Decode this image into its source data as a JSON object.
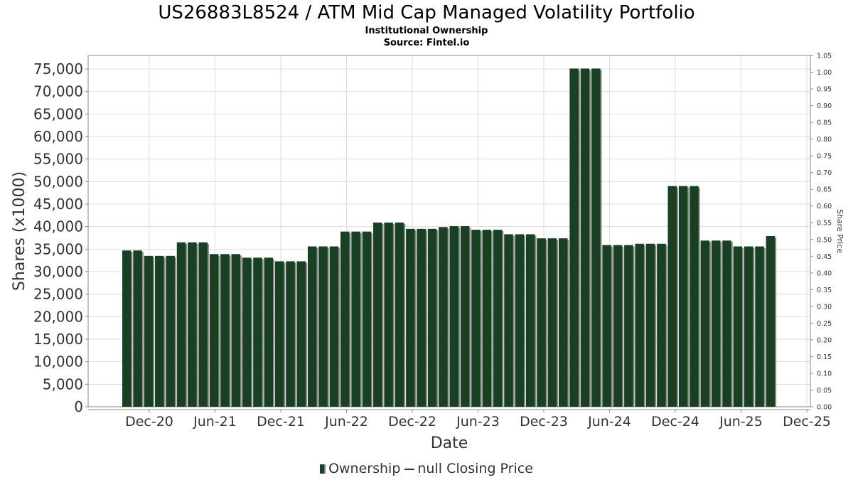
{
  "chart_data": {
    "type": "bar",
    "title": "US26883L8524 / ATM Mid Cap Managed Volatility Portfolio",
    "subtitle": "Institutional Ownership",
    "source": "Source: Fintel.io",
    "xlabel": "Date",
    "ylabel": "Shares (x1000)",
    "y2label": "Share Price",
    "ylim": [
      0,
      78000
    ],
    "y2lim": [
      0,
      1.05
    ],
    "yticks": [
      "0",
      "5,000",
      "10,000",
      "15,000",
      "20,000",
      "25,000",
      "30,000",
      "35,000",
      "40,000",
      "45,000",
      "50,000",
      "55,000",
      "60,000",
      "65,000",
      "70,000",
      "75,000"
    ],
    "y2ticks": [
      "0.00",
      "0.05",
      "0.10",
      "0.15",
      "0.20",
      "0.25",
      "0.30",
      "0.35",
      "0.40",
      "0.45",
      "0.50",
      "0.55",
      "0.60",
      "0.65",
      "0.70",
      "0.75",
      "0.80",
      "0.85",
      "0.90",
      "0.95",
      "1.00",
      "1.05"
    ],
    "xticks": [
      "Dec-20",
      "Jun-21",
      "Dec-21",
      "Jun-22",
      "Dec-22",
      "Jun-23",
      "Dec-23",
      "Jun-24",
      "Dec-24",
      "Jun-25",
      "Dec-25"
    ],
    "grid": true,
    "legend_position": "bottom",
    "series": [
      {
        "name": "Ownership",
        "color": "#1a4023",
        "values": [
          34700,
          34700,
          33500,
          33500,
          33500,
          36500,
          36500,
          36500,
          33900,
          33900,
          33900,
          33100,
          33100,
          33100,
          32300,
          32300,
          32300,
          35600,
          35600,
          35600,
          38900,
          38900,
          38900,
          40900,
          40900,
          40900,
          39500,
          39500,
          39500,
          39900,
          40100,
          40100,
          39300,
          39300,
          39300,
          38300,
          38300,
          38300,
          37400,
          37400,
          37400,
          75100,
          75100,
          75100,
          35900,
          35900,
          35900,
          36200,
          36200,
          36200,
          49000,
          49000,
          49000,
          36900,
          36900,
          36900,
          35600,
          35600,
          35600,
          37900
        ]
      },
      {
        "name": "null Closing Price",
        "color": "#333333",
        "values": []
      }
    ]
  }
}
